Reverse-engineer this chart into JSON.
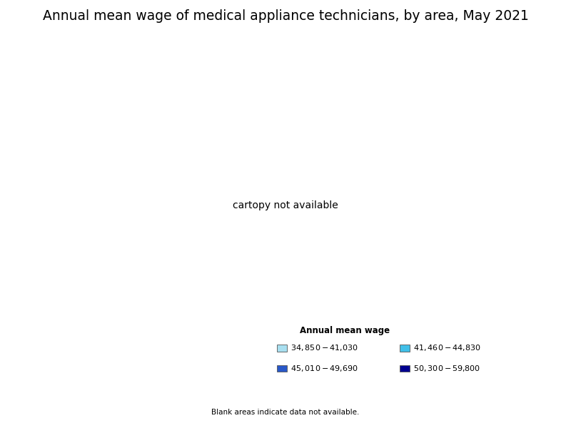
{
  "title": "Annual mean wage of medical appliance technicians, by area, May 2021",
  "legend_title": "Annual mean wage",
  "legend_labels": [
    "$34,850 - $41,030",
    "$41,460 - $44,830",
    "$45,010 - $49,690",
    "$50,300 - $59,800"
  ],
  "legend_colors": [
    "#a8dff0",
    "#40bfe8",
    "#2858c8",
    "#000090"
  ],
  "blank_note": "Blank areas indicate data not available.",
  "background_color": "#ffffff",
  "title_fontsize": 13.5,
  "no_data_color": "#ffffff",
  "border_color": "#555555",
  "state_border_color": "#222222",
  "county_border_color": "#aaaaaa"
}
